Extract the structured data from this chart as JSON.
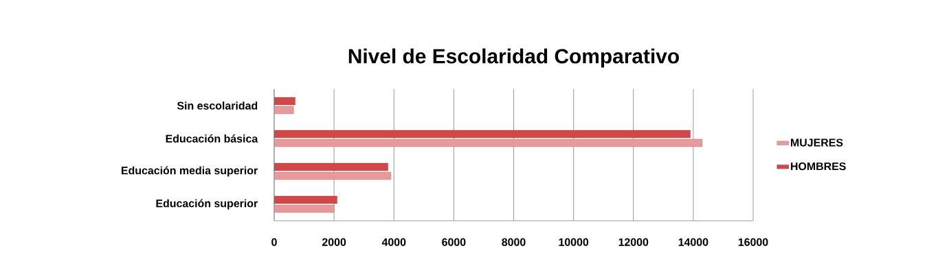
{
  "chart_data": {
    "type": "bar",
    "orientation": "horizontal",
    "title": "Nivel de Escolaridad Comparativo",
    "categories": [
      "Sin escolaridad",
      "Educación básica",
      "Educación media superior",
      "Educación superior"
    ],
    "series": [
      {
        "name": "MUJERES",
        "color": "#e89a9a",
        "values": [
          650,
          14300,
          3900,
          2000
        ]
      },
      {
        "name": "HOMBRES",
        "color": "#d04848",
        "values": [
          700,
          13900,
          3800,
          2100
        ]
      }
    ],
    "xlim": [
      0,
      16000
    ],
    "xticks": [
      0,
      2000,
      4000,
      6000,
      8000,
      10000,
      12000,
      14000,
      16000
    ],
    "grid": "x",
    "legend": "right"
  }
}
